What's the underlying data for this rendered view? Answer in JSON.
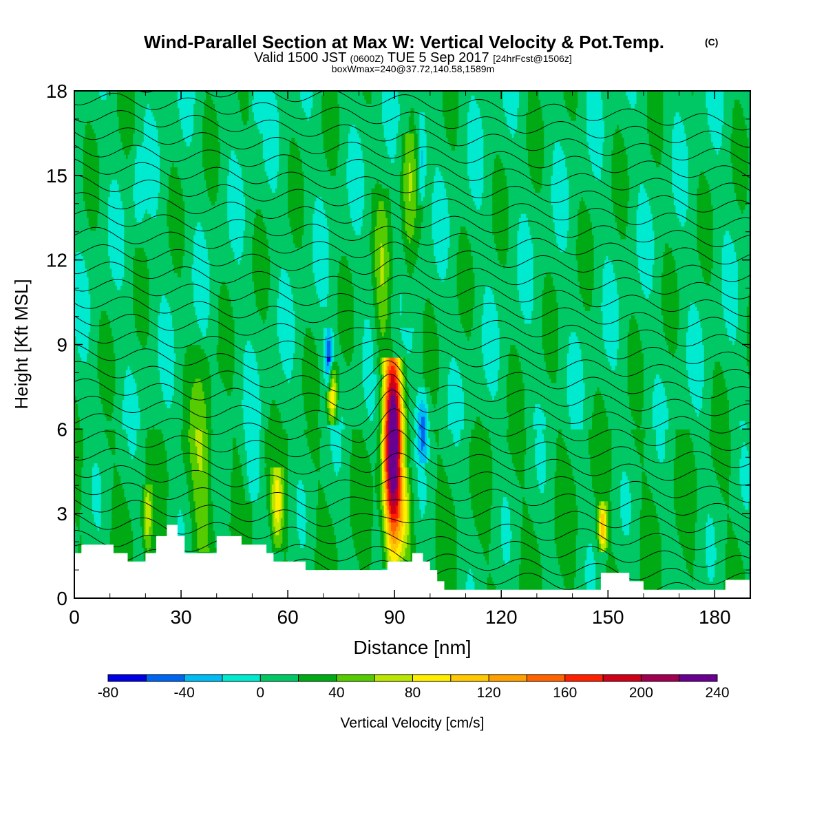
{
  "titles": {
    "main": "Wind-Parallel Section at Max W: Vertical Velocity & Pot.Temp.",
    "copyright": "(C)",
    "valid_prefix": "Valid 1500 JST",
    "valid_utc": "(0600Z)",
    "valid_date": "TUE 5 Sep 2017",
    "forecast": "[24hrFcst@1506z]",
    "box_info": "boxWmax=240@37.72,140.58,1589m"
  },
  "chart_data": {
    "type": "heatmap",
    "title": "Wind-Parallel Section at Max W: Vertical Velocity & Pot.Temp.",
    "xlabel": "Distance [nm]",
    "ylabel": "Height [Kft MSL]",
    "xlim": [
      0,
      190
    ],
    "ylim": [
      0,
      18
    ],
    "x_ticks": [
      0,
      30,
      60,
      90,
      120,
      150,
      180
    ],
    "y_ticks": [
      0,
      3,
      6,
      9,
      12,
      15,
      18
    ],
    "x_tick_labels": [
      "0",
      "30",
      "60",
      "90",
      "120",
      "150",
      "180"
    ],
    "y_tick_labels": [
      "0",
      "3",
      "6",
      "9",
      "12",
      "15",
      "18"
    ],
    "colorbar": {
      "label": "Vertical Velocity [cm/s]",
      "bounds": [
        -80,
        -60,
        -40,
        -20,
        0,
        20,
        40,
        60,
        80,
        100,
        120,
        140,
        160,
        180,
        200,
        220,
        240
      ],
      "tick_values": [
        -80,
        -40,
        0,
        40,
        80,
        120,
        160,
        200,
        240
      ],
      "tick_labels": [
        "-80",
        "-40",
        "0",
        "40",
        "80",
        "120",
        "160",
        "200",
        "240"
      ],
      "colors": [
        "#0000e6",
        "#0066f0",
        "#00bcf5",
        "#00ead0",
        "#00c864",
        "#00aa14",
        "#55cc00",
        "#bbe600",
        "#ffee00",
        "#ffc800",
        "#ffa000",
        "#ff6400",
        "#ff2000",
        "#d00018",
        "#a00050",
        "#6a0090"
      ]
    },
    "background_w": 10,
    "terrain": [
      [
        0,
        1.6
      ],
      [
        2,
        1.6
      ],
      [
        2,
        1.9
      ],
      [
        11,
        1.9
      ],
      [
        11,
        1.6
      ],
      [
        15,
        1.6
      ],
      [
        15,
        1.3
      ],
      [
        20,
        1.3
      ],
      [
        20,
        1.6
      ],
      [
        23,
        1.6
      ],
      [
        23,
        2.2
      ],
      [
        26,
        2.2
      ],
      [
        26,
        2.6
      ],
      [
        29,
        2.6
      ],
      [
        29,
        2.2
      ],
      [
        31,
        2.2
      ],
      [
        31,
        1.6
      ],
      [
        40,
        1.6
      ],
      [
        40,
        2.2
      ],
      [
        47,
        2.2
      ],
      [
        47,
        1.9
      ],
      [
        54,
        1.9
      ],
      [
        54,
        1.6
      ],
      [
        56,
        1.6
      ],
      [
        56,
        1.3
      ],
      [
        65,
        1.3
      ],
      [
        65,
        1.0
      ],
      [
        88,
        1.0
      ],
      [
        88,
        1.3
      ],
      [
        95,
        1.3
      ],
      [
        95,
        1.6
      ],
      [
        98,
        1.6
      ],
      [
        98,
        1.3
      ],
      [
        100,
        1.3
      ],
      [
        100,
        1.0
      ],
      [
        102,
        1.0
      ],
      [
        102,
        0.6
      ],
      [
        104,
        0.6
      ],
      [
        104,
        0.3
      ],
      [
        148,
        0.3
      ],
      [
        148,
        0.9
      ],
      [
        156,
        0.9
      ],
      [
        156,
        0.6
      ],
      [
        160,
        0.6
      ],
      [
        160,
        0.3
      ],
      [
        183,
        0.3
      ],
      [
        183,
        0.65
      ],
      [
        190,
        0.65
      ]
    ],
    "updrafts": [
      {
        "x": 89.5,
        "z0": 1.1,
        "z1": 8.5,
        "peak": 240,
        "zpeak": 5.4,
        "width": 1.8
      },
      {
        "x": 72.5,
        "z0": 6.2,
        "z1": 8.4,
        "peak": 100,
        "zpeak": 7.2,
        "width": 1.0
      },
      {
        "x": 148.5,
        "z0": 1.6,
        "z1": 3.4,
        "peak": 100,
        "zpeak": 2.5,
        "width": 0.9
      },
      {
        "x": 93,
        "z0": 1.4,
        "z1": 4.6,
        "peak": 45,
        "zpeak": 3.0,
        "width": 1.6
      },
      {
        "x": 57,
        "z0": 1.6,
        "z1": 4.6,
        "peak": 65,
        "zpeak": 3.3,
        "width": 1.2
      },
      {
        "x": 94,
        "z0": 9.6,
        "z1": 16.5,
        "peak": 42,
        "zpeak": 14.0,
        "width": 1.5
      },
      {
        "x": 20.5,
        "z0": 1.3,
        "z1": 4.0,
        "peak": 55,
        "zpeak": 2.8,
        "width": 0.9
      },
      {
        "x": 36,
        "z0": 1.7,
        "z1": 9.0,
        "peak": 42,
        "zpeak": 5.0,
        "width": 2.2
      },
      {
        "x": 86.5,
        "z0": 8.0,
        "z1": 14.5,
        "peak": 38,
        "zpeak": 11.0,
        "width": 1.6
      }
    ],
    "downdrafts": [
      {
        "x": 71.5,
        "z0": 7.3,
        "z1": 9.6,
        "peak": -70,
        "zpeak": 8.4,
        "width": 0.8
      },
      {
        "x": 98,
        "z0": 4.8,
        "z1": 7.5,
        "peak": -55,
        "zpeak": 6.0,
        "width": 1.1
      },
      {
        "x": 97.5,
        "z0": 14.0,
        "z1": 17.2,
        "peak": -48,
        "zpeak": 15.5,
        "width": 0.9
      },
      {
        "x": 50,
        "z0": 3.5,
        "z1": 7.0,
        "peak": -28,
        "zpeak": 4.5,
        "width": 1.5
      },
      {
        "x": 51,
        "z0": 16.5,
        "z1": 18.0,
        "peak": -28,
        "zpeak": 17.5,
        "width": 1.2
      },
      {
        "x": 18,
        "z0": 12.5,
        "z1": 16.0,
        "peak": -25,
        "zpeak": 14.5,
        "width": 1.2
      }
    ],
    "theta_levels": [
      0.9,
      1.4,
      2.0,
      2.6,
      3.2,
      3.8,
      4.4,
      5.0,
      5.6,
      6.2,
      6.8,
      7.4,
      8.0,
      8.6,
      9.2,
      9.8,
      10.4,
      11.0,
      11.6,
      12.2,
      12.8,
      13.4,
      14.0,
      14.6,
      15.2,
      15.8,
      16.4,
      17.0,
      17.6
    ],
    "contour_tilt_per_nm": -0.008
  }
}
